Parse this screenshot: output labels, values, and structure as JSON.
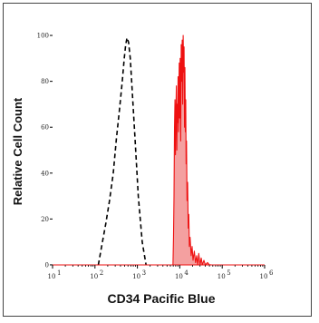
{
  "chart_data": {
    "type": "area",
    "xlabel": "CD34 Pacific Blue",
    "ylabel": "Relative Cell Count",
    "x_scale": "log",
    "xlim": [
      10,
      1000000
    ],
    "ylim": [
      -2,
      102
    ],
    "x_ticks": [
      {
        "value": 10,
        "base": "10",
        "exp": "1"
      },
      {
        "value": 100,
        "base": "10",
        "exp": "2"
      },
      {
        "value": 1000,
        "base": "10",
        "exp": "3"
      },
      {
        "value": 10000,
        "base": "10",
        "exp": "4"
      },
      {
        "value": 100000,
        "base": "10",
        "exp": "5"
      },
      {
        "value": 1000000,
        "base": "10",
        "exp": "6"
      }
    ],
    "y_ticks": [
      {
        "value": 0,
        "label": "0"
      },
      {
        "value": 20,
        "label": "20"
      },
      {
        "value": 40,
        "label": "40"
      },
      {
        "value": 60,
        "label": "60"
      },
      {
        "value": 80,
        "label": "80"
      },
      {
        "value": 100,
        "label": "100"
      }
    ],
    "grid": false,
    "series": [
      {
        "style": "dashed-outline",
        "color": "#000000",
        "x": [
          120,
          150,
          180,
          220,
          270,
          320,
          380,
          440,
          490,
          530,
          570,
          620,
          680,
          760,
          880,
          1050,
          1300,
          1600
        ],
        "y": [
          0,
          10,
          18,
          28,
          40,
          55,
          68,
          80,
          90,
          96,
          99,
          97,
          90,
          75,
          55,
          30,
          10,
          0
        ]
      },
      {
        "style": "filled",
        "color": "#ee1111",
        "fill": "#f4a0a0",
        "x": [
          6900,
          7100,
          7300,
          7500,
          7700,
          7900,
          8100,
          8300,
          8500,
          8700,
          8900,
          9100,
          9300,
          9500,
          9700,
          9900,
          10200,
          10500,
          10800,
          11100,
          11400,
          11700,
          12000,
          12300,
          12600,
          12900,
          13200,
          13500,
          13800,
          14100,
          14400,
          14800,
          15300,
          15800,
          16300,
          16800,
          17500,
          18500,
          19500,
          20500,
          22000,
          23500,
          25000,
          26500,
          28000,
          30000,
          32000,
          34000,
          37000,
          40000,
          45000,
          50000,
          55000
        ],
        "y": [
          0,
          12,
          30,
          60,
          72,
          48,
          66,
          78,
          50,
          70,
          62,
          82,
          58,
          76,
          88,
          64,
          90,
          54,
          96,
          80,
          98,
          70,
          100,
          84,
          95,
          60,
          86,
          58,
          72,
          44,
          54,
          28,
          36,
          16,
          22,
          8,
          12,
          4,
          8,
          2,
          6,
          1,
          4,
          0,
          5,
          0,
          3,
          0,
          2,
          0,
          1,
          0,
          0
        ]
      }
    ]
  }
}
